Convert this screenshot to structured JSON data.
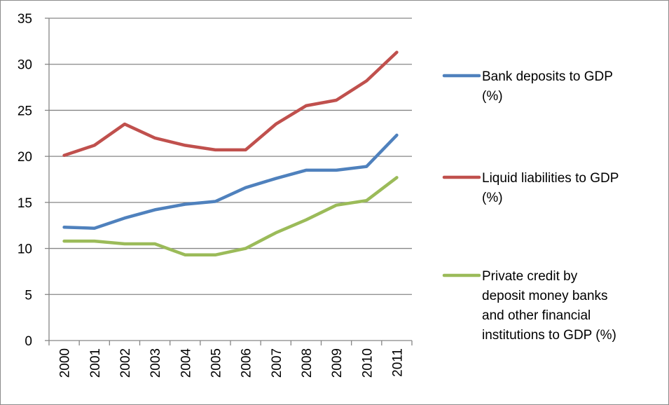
{
  "chart_data": {
    "type": "line",
    "title": "",
    "xlabel": "",
    "ylabel": "",
    "x": [
      "2000",
      "2001",
      "2002",
      "2003",
      "2004",
      "2005",
      "2006",
      "2007",
      "2008",
      "2009",
      "2010",
      "2011"
    ],
    "ylim": [
      0,
      35
    ],
    "yticks": [
      0,
      5,
      10,
      15,
      20,
      25,
      30,
      35
    ],
    "grid": "horizontal",
    "legend_position": "right",
    "series": [
      {
        "name": "Bank deposits to GDP (%)",
        "legend_lines": [
          "Bank deposits to GDP",
          "(%)"
        ],
        "color": "#4f81bd",
        "values": [
          12.3,
          12.2,
          13.3,
          14.2,
          14.8,
          15.1,
          16.6,
          17.6,
          18.5,
          18.5,
          18.9,
          22.3
        ]
      },
      {
        "name": "Liquid liabilities to GDP (%)",
        "legend_lines": [
          "Liquid liabilities to GDP",
          "(%)"
        ],
        "color": "#c0504d",
        "values": [
          20.1,
          21.2,
          23.5,
          22.0,
          21.2,
          20.7,
          20.7,
          23.5,
          25.5,
          26.1,
          28.2,
          31.3
        ]
      },
      {
        "name": "Private credit by deposit money banks and other financial institutions to GDP (%)",
        "legend_lines": [
          "Private credit by",
          "deposit money banks",
          "and other financial",
          "institutions to GDP (%)"
        ],
        "color": "#9bbb59",
        "values": [
          10.8,
          10.8,
          10.5,
          10.5,
          9.3,
          9.3,
          10.0,
          11.7,
          13.1,
          14.7,
          15.2,
          17.7
        ]
      }
    ]
  }
}
